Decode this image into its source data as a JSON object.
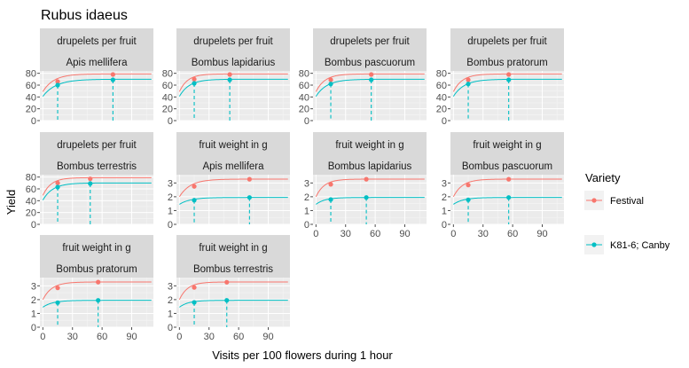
{
  "chart_data": {
    "type": "line",
    "title": "Rubus idaeus",
    "xlabel": "Visits per 100 flowers during 1 hour",
    "ylabel": "Yield",
    "xlim": [
      -3,
      112
    ],
    "x_ticks": [
      0,
      30,
      60,
      90
    ],
    "legend": {
      "title": "Variety",
      "position": "right",
      "entries": [
        {
          "name": "Festival",
          "color": "#F8766D"
        },
        {
          "name": "K81-6; Canby",
          "color": "#00BFC4"
        }
      ]
    },
    "panels": [
      {
        "strip_top": "drupelets per fruit",
        "strip_bottom": "Apis mellifera",
        "ylim": [
          0,
          84
        ],
        "y_ticks": [
          0,
          20,
          40,
          60,
          80
        ],
        "series": [
          {
            "name": "Festival",
            "curve": {
              "asymptote": 79,
              "start": 49,
              "rate": 0.09
            },
            "points": [
              {
                "x": 15,
                "y": 66
              },
              {
                "x": 71,
                "y": 78
              }
            ]
          },
          {
            "name": "K81-6; Canby",
            "curve": {
              "asymptote": 70,
              "start": 41,
              "rate": 0.075
            },
            "points": [
              {
                "x": 15,
                "y": 60
              },
              {
                "x": 71,
                "y": 69
              }
            ]
          }
        ]
      },
      {
        "strip_top": "drupelets per fruit",
        "strip_bottom": "Bombus lapidarius",
        "ylim": [
          0,
          84
        ],
        "y_ticks": [
          0,
          20,
          40,
          60,
          80
        ],
        "series": [
          {
            "name": "Festival",
            "curve": {
              "asymptote": 79,
              "start": 49,
              "rate": 0.12
            },
            "points": [
              {
                "x": 15,
                "y": 70
              },
              {
                "x": 51,
                "y": 78
              }
            ]
          },
          {
            "name": "K81-6; Canby",
            "curve": {
              "asymptote": 70,
              "start": 41,
              "rate": 0.1
            },
            "points": [
              {
                "x": 15,
                "y": 63
              },
              {
                "x": 51,
                "y": 69
              }
            ]
          }
        ]
      },
      {
        "strip_top": "drupelets per fruit",
        "strip_bottom": "Bombus pascuorum",
        "ylim": [
          0,
          84
        ],
        "y_ticks": [
          0,
          20,
          40,
          60,
          80
        ],
        "series": [
          {
            "name": "Festival",
            "curve": {
              "asymptote": 79,
              "start": 49,
              "rate": 0.11
            },
            "points": [
              {
                "x": 15,
                "y": 69
              },
              {
                "x": 56,
                "y": 78
              }
            ]
          },
          {
            "name": "K81-6; Canby",
            "curve": {
              "asymptote": 70,
              "start": 41,
              "rate": 0.09
            },
            "points": [
              {
                "x": 15,
                "y": 62
              },
              {
                "x": 56,
                "y": 69
              }
            ]
          }
        ]
      },
      {
        "strip_top": "drupelets per fruit",
        "strip_bottom": "Bombus pratorum",
        "ylim": [
          0,
          84
        ],
        "y_ticks": [
          0,
          20,
          40,
          60,
          80
        ],
        "series": [
          {
            "name": "Festival",
            "curve": {
              "asymptote": 79,
              "start": 49,
              "rate": 0.11
            },
            "points": [
              {
                "x": 15,
                "y": 69
              },
              {
                "x": 56,
                "y": 78
              }
            ]
          },
          {
            "name": "K81-6; Canby",
            "curve": {
              "asymptote": 70,
              "start": 41,
              "rate": 0.09
            },
            "points": [
              {
                "x": 15,
                "y": 62
              },
              {
                "x": 56,
                "y": 69
              }
            ]
          }
        ]
      },
      {
        "strip_top": "drupelets per fruit",
        "strip_bottom": "Bombus terrestris",
        "ylim": [
          0,
          84
        ],
        "y_ticks": [
          0,
          20,
          40,
          60,
          80
        ],
        "series": [
          {
            "name": "Festival",
            "curve": {
              "asymptote": 79,
              "start": 49,
              "rate": 0.12
            },
            "points": [
              {
                "x": 15,
                "y": 70
              },
              {
                "x": 48,
                "y": 77
              }
            ]
          },
          {
            "name": "K81-6; Canby",
            "curve": {
              "asymptote": 70,
              "start": 41,
              "rate": 0.1
            },
            "points": [
              {
                "x": 15,
                "y": 63
              },
              {
                "x": 48,
                "y": 69
              }
            ]
          }
        ]
      },
      {
        "strip_top": "fruit weight in g",
        "strip_bottom": "Apis mellifera",
        "ylim": [
          0,
          3.6
        ],
        "y_ticks": [
          0,
          1,
          2,
          3
        ],
        "series": [
          {
            "name": "Festival",
            "curve": {
              "asymptote": 3.28,
              "start": 2.0,
              "rate": 0.09
            },
            "points": [
              {
                "x": 15,
                "y": 2.75
              },
              {
                "x": 71,
                "y": 3.27
              }
            ]
          },
          {
            "name": "K81-6; Canby",
            "curve": {
              "asymptote": 1.95,
              "start": 1.45,
              "rate": 0.09
            },
            "points": [
              {
                "x": 15,
                "y": 1.75
              },
              {
                "x": 71,
                "y": 1.95
              }
            ]
          }
        ]
      },
      {
        "strip_top": "fruit weight in g",
        "strip_bottom": "Bombus lapidarius",
        "ylim": [
          0,
          3.6
        ],
        "y_ticks": [
          0,
          1,
          2,
          3
        ],
        "series": [
          {
            "name": "Festival",
            "curve": {
              "asymptote": 3.28,
              "start": 2.0,
              "rate": 0.12
            },
            "points": [
              {
                "x": 15,
                "y": 2.9
              },
              {
                "x": 51,
                "y": 3.27
              }
            ]
          },
          {
            "name": "K81-6; Canby",
            "curve": {
              "asymptote": 1.95,
              "start": 1.45,
              "rate": 0.11
            },
            "points": [
              {
                "x": 15,
                "y": 1.8
              },
              {
                "x": 51,
                "y": 1.95
              }
            ]
          }
        ]
      },
      {
        "strip_top": "fruit weight in g",
        "strip_bottom": "Bombus pascuorum",
        "ylim": [
          0,
          3.6
        ],
        "y_ticks": [
          0,
          1,
          2,
          3
        ],
        "series": [
          {
            "name": "Festival",
            "curve": {
              "asymptote": 3.28,
              "start": 2.0,
              "rate": 0.11
            },
            "points": [
              {
                "x": 15,
                "y": 2.85
              },
              {
                "x": 56,
                "y": 3.27
              }
            ]
          },
          {
            "name": "K81-6; Canby",
            "curve": {
              "asymptote": 1.95,
              "start": 1.45,
              "rate": 0.1
            },
            "points": [
              {
                "x": 15,
                "y": 1.78
              },
              {
                "x": 56,
                "y": 1.95
              }
            ]
          }
        ]
      },
      {
        "strip_top": "fruit weight in g",
        "strip_bottom": "Bombus pratorum",
        "ylim": [
          0,
          3.6
        ],
        "y_ticks": [
          0,
          1,
          2,
          3
        ],
        "series": [
          {
            "name": "Festival",
            "curve": {
              "asymptote": 3.28,
              "start": 2.0,
              "rate": 0.11
            },
            "points": [
              {
                "x": 15,
                "y": 2.85
              },
              {
                "x": 56,
                "y": 3.27
              }
            ]
          },
          {
            "name": "K81-6; Canby",
            "curve": {
              "asymptote": 1.95,
              "start": 1.45,
              "rate": 0.1
            },
            "points": [
              {
                "x": 15,
                "y": 1.78
              },
              {
                "x": 56,
                "y": 1.95
              }
            ]
          }
        ]
      },
      {
        "strip_top": "fruit weight in g",
        "strip_bottom": "Bombus terrestris",
        "ylim": [
          0,
          3.6
        ],
        "y_ticks": [
          0,
          1,
          2,
          3
        ],
        "series": [
          {
            "name": "Festival",
            "curve": {
              "asymptote": 3.28,
              "start": 2.0,
              "rate": 0.12
            },
            "points": [
              {
                "x": 15,
                "y": 2.88
              },
              {
                "x": 48,
                "y": 3.26
              }
            ]
          },
          {
            "name": "K81-6; Canby",
            "curve": {
              "asymptote": 1.95,
              "start": 1.45,
              "rate": 0.11
            },
            "points": [
              {
                "x": 15,
                "y": 1.8
              },
              {
                "x": 48,
                "y": 1.95
              }
            ]
          }
        ]
      }
    ]
  }
}
